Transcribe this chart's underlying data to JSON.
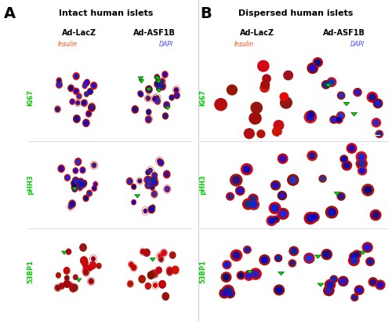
{
  "fig_width": 5.0,
  "fig_height": 4.09,
  "dpi": 100,
  "background_color": "#ffffff",
  "panel_A_title": "Intact human islets",
  "panel_B_title": "Dispersed human islets",
  "col_labels_A": [
    "Ad-LacZ",
    "Ad-ASF1B"
  ],
  "col_labels_B": [
    "Ad-LacZ",
    "Ad-ASF1B"
  ],
  "row_labels": [
    "Ki67",
    "pHH3",
    "53BP1"
  ],
  "row_label_colors": [
    "#00cc00",
    "#00cc00",
    "#00cc00"
  ],
  "insulin_color": "#ff3300",
  "dapi_color": "#4444ff",
  "channel_label_insulin": "Insulin",
  "channel_label_dapi": "DAPI",
  "arrow_color": "#00ee00",
  "border_color": "#aaaaaa"
}
